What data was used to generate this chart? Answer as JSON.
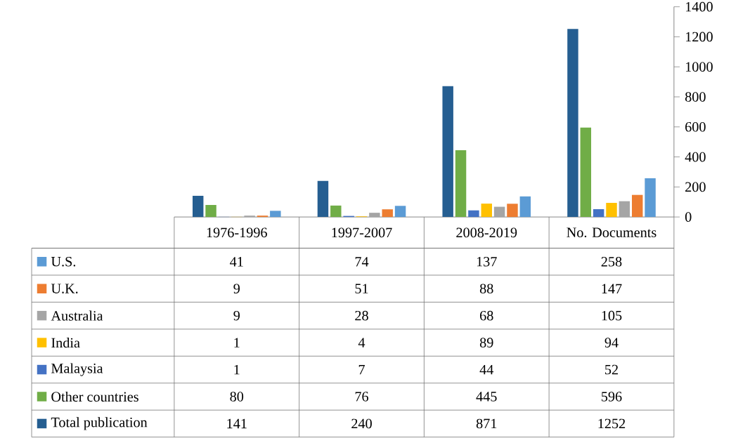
{
  "chart_data": {
    "type": "bar",
    "categories": [
      "1976-1996",
      "1997-2007",
      "2008-2019",
      "No. Documents"
    ],
    "series": [
      {
        "name": "Total publication",
        "color": "#255e91",
        "values": [
          141,
          240,
          871,
          1252
        ]
      },
      {
        "name": "Other countries",
        "color": "#70ad47",
        "values": [
          80,
          76,
          445,
          596
        ]
      },
      {
        "name": "Malaysia",
        "color": "#4472c4",
        "values": [
          1,
          7,
          44,
          52
        ]
      },
      {
        "name": "India",
        "color": "#ffc000",
        "values": [
          1,
          4,
          89,
          94
        ]
      },
      {
        "name": "Australia",
        "color": "#a5a5a5",
        "values": [
          9,
          28,
          68,
          105
        ]
      },
      {
        "name": "U.K.",
        "color": "#ed7d31",
        "values": [
          9,
          51,
          88,
          147
        ]
      },
      {
        "name": "U.S.",
        "color": "#5b9bd5",
        "values": [
          41,
          74,
          137,
          258
        ]
      }
    ],
    "ylim": [
      0,
      1400
    ],
    "yticks": [
      0,
      200,
      400,
      600,
      800,
      1000,
      1200,
      1400
    ],
    "data_labels": true,
    "legend": "bottom left"
  }
}
